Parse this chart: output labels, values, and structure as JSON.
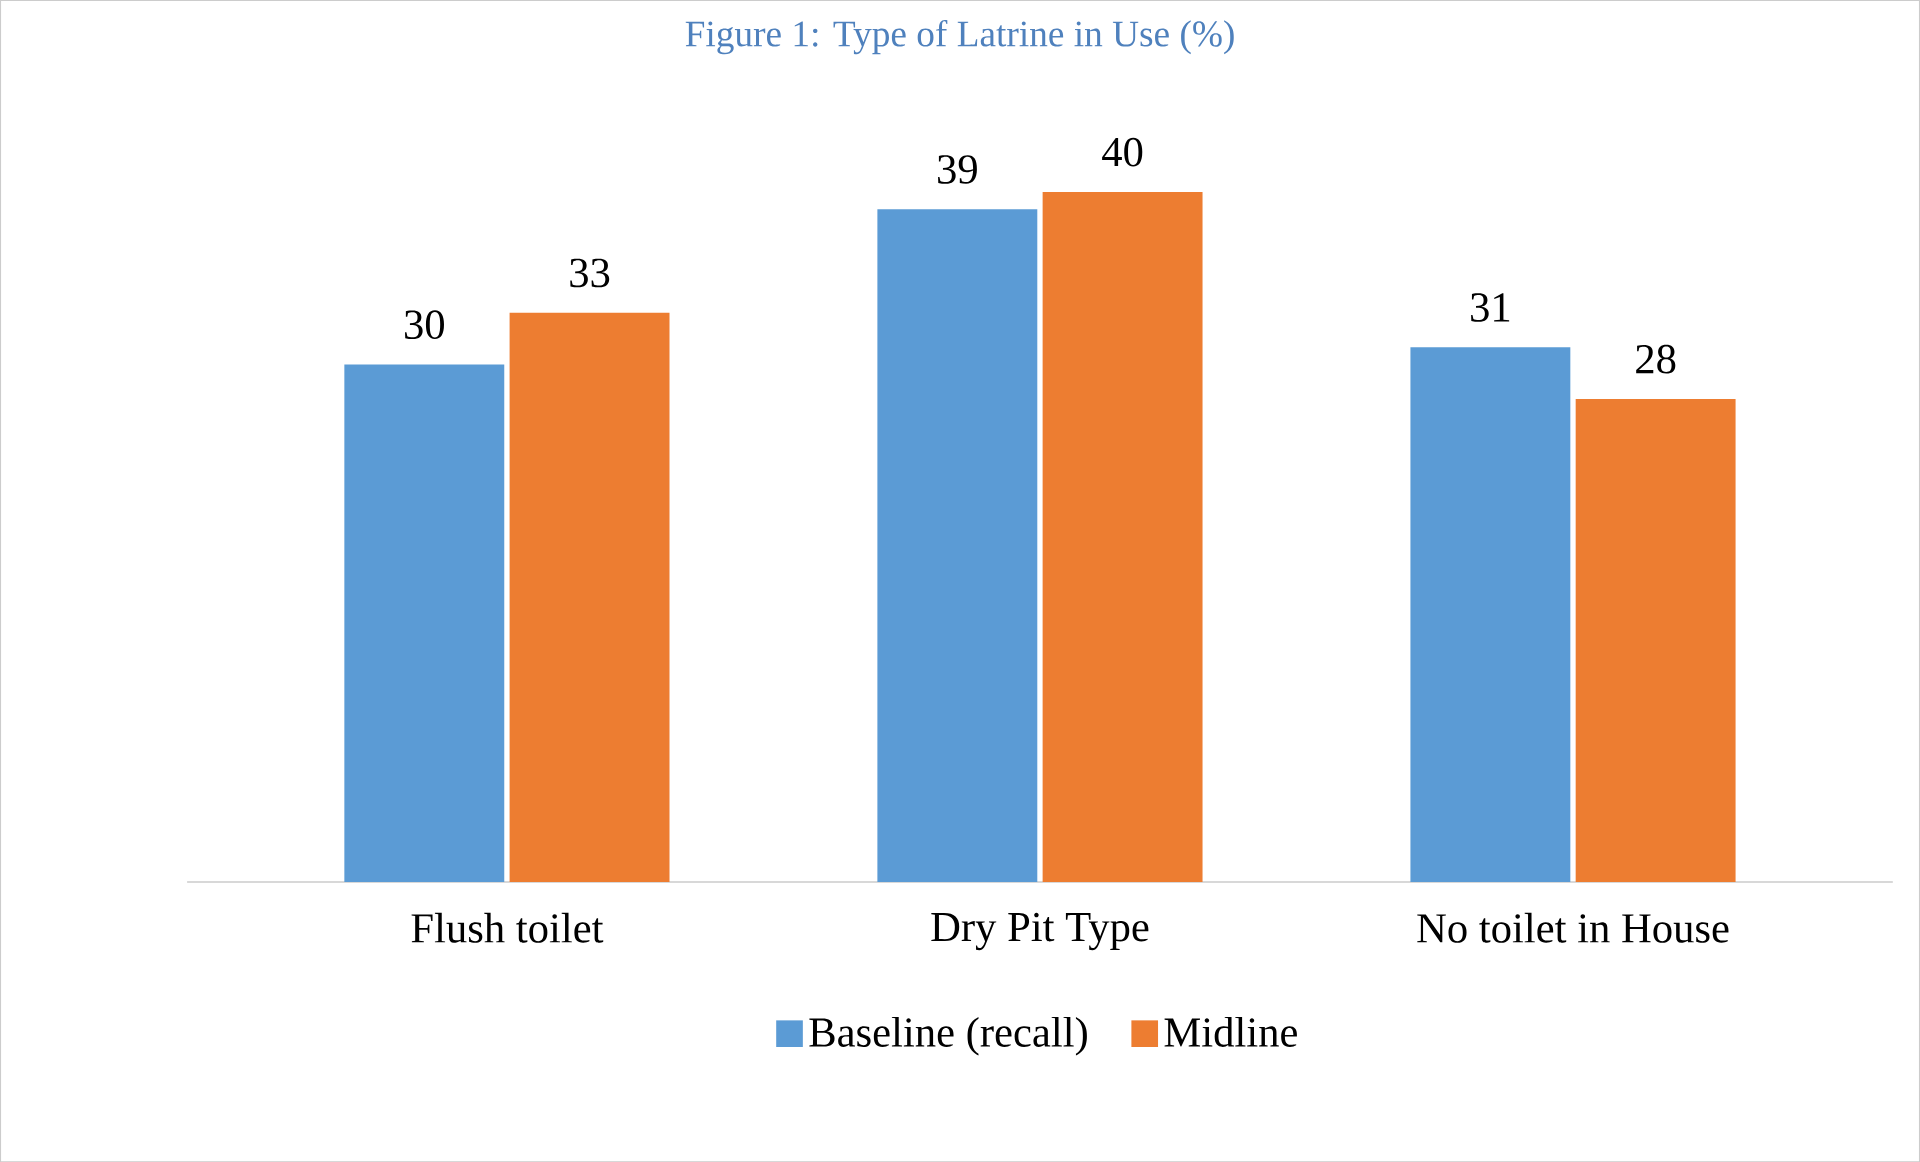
{
  "chart_data": {
    "type": "bar",
    "title": "Figure 1: Type of Latrine in Use (%)",
    "categories": [
      "Flush toilet",
      "Dry Pit Type",
      "No toilet in House"
    ],
    "series": [
      {
        "name": "Baseline (recall)",
        "color": "#5b9bd5",
        "values": [
          30,
          39,
          31
        ]
      },
      {
        "name": "Midline",
        "color": "#ed7d31",
        "values": [
          33,
          40,
          28
        ]
      }
    ],
    "data_labels": true,
    "legend": "bottom"
  }
}
